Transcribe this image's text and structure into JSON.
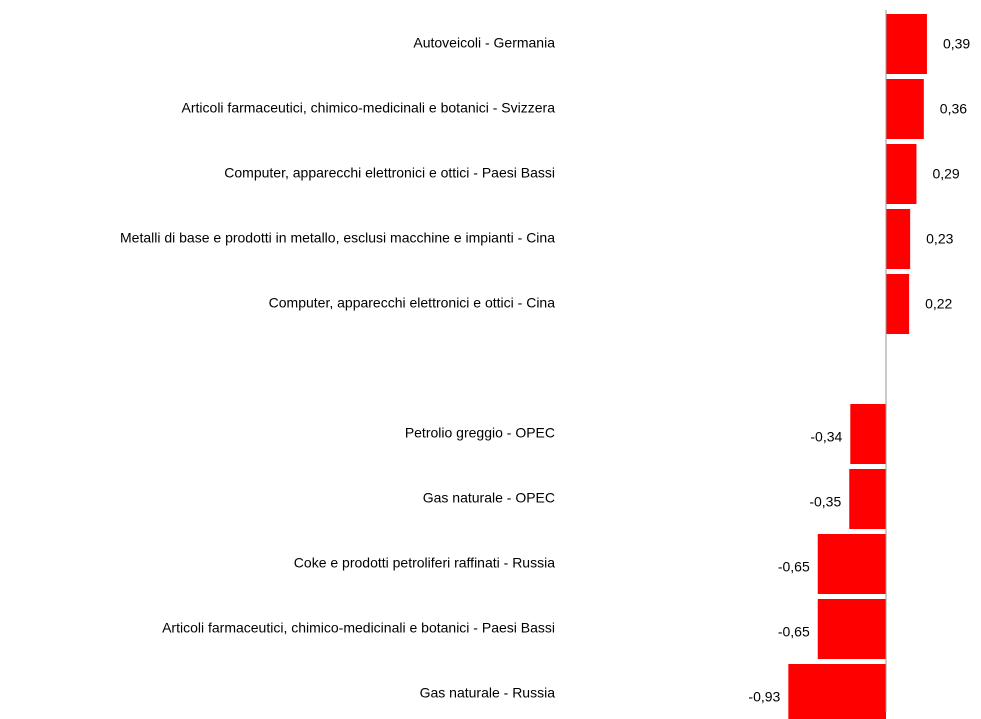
{
  "chart_data": {
    "type": "bar",
    "orientation": "horizontal",
    "categories": [
      "Autoveicoli - Germania",
      "Articoli farmaceutici, chimico-medicinali e botanici - Svizzera",
      "Computer, apparecchi elettronici e ottici - Paesi Bassi",
      "Metalli di base e prodotti in metallo, esclusi macchine e impianti - Cina",
      "Computer, apparecchi elettronici e ottici - Cina",
      null,
      "Petrolio greggio - OPEC",
      "Gas naturale - OPEC",
      "Coke e prodotti petroliferi raffinati - Russia",
      "Articoli farmaceutici, chimico-medicinali e botanici - Paesi Bassi",
      "Gas naturale - Russia"
    ],
    "values": [
      0.39,
      0.36,
      0.29,
      0.23,
      0.22,
      null,
      -0.34,
      -0.35,
      -0.65,
      -0.65,
      -0.93
    ],
    "value_labels": [
      "0,39",
      "0,36",
      "0,29",
      "0,23",
      "0,22",
      null,
      "-0,34",
      "-0,35",
      "-0,65",
      "-0,65",
      "-0,93"
    ],
    "color": "#ff0000",
    "xlim": [
      -1,
      0.5
    ]
  }
}
